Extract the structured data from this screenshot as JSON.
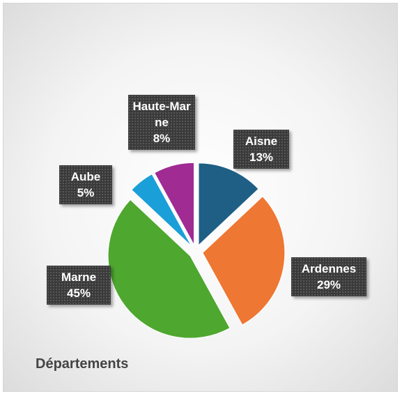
{
  "chart_data": {
    "type": "pie",
    "title": "Départements",
    "categories": [
      "Aisne",
      "Ardennes",
      "Marne",
      "Aube",
      "Haute-Marne"
    ],
    "values": [
      13,
      29,
      45,
      5,
      8
    ],
    "value_labels": [
      "13%",
      "29%",
      "45%",
      "5%",
      "8%"
    ],
    "colors": [
      "#1f5f86",
      "#ee7733",
      "#4ea72e",
      "#1a9fd9",
      "#a02b93"
    ]
  }
}
